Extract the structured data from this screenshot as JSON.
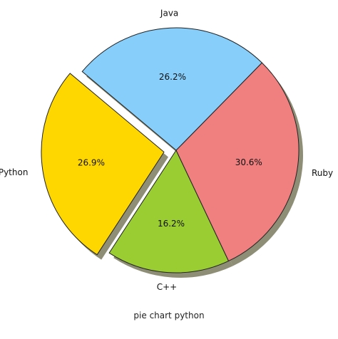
{
  "caption": "pie chart python",
  "chart_data": {
    "type": "pie",
    "title": "",
    "categories": [
      "Python",
      "C++",
      "Ruby",
      "Java"
    ],
    "values": [
      26.9,
      16.2,
      30.6,
      26.2
    ],
    "percent_labels": [
      "26.9%",
      "16.2%",
      "30.6%",
      "26.2%"
    ],
    "colors": [
      "#ffd700",
      "#9acd32",
      "#f08080",
      "#87cefa"
    ],
    "explode": [
      0.1,
      0,
      0,
      0
    ],
    "shadow": true,
    "start_angle_deg": 140,
    "edge_color": "#222222"
  }
}
